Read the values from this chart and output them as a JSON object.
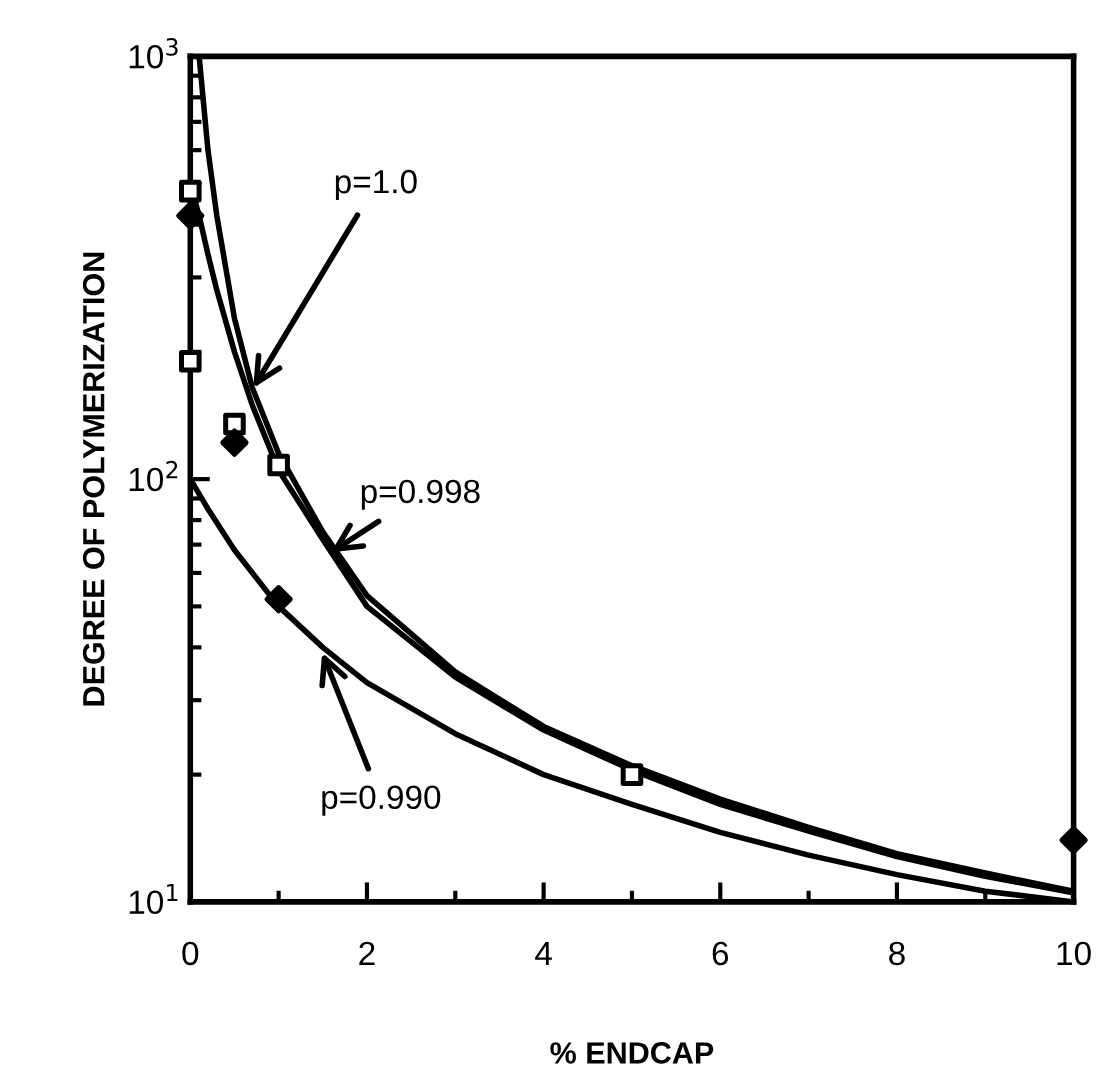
{
  "chart_data": {
    "type": "line",
    "xlabel": "% ENDCAP",
    "ylabel": "DEGREE OF POLYMERIZATION",
    "log": "y",
    "xlim": [
      0,
      10
    ],
    "ylim": [
      10,
      1000
    ],
    "xticks": [
      0,
      2,
      4,
      6,
      8,
      10
    ],
    "yticks": [
      {
        "value": 10,
        "label": "10$^{1}$"
      },
      {
        "value": 100,
        "label": "10$^{2}$"
      },
      {
        "value": 1000,
        "label": "10$^{3}$"
      }
    ],
    "grid": false,
    "legend": false,
    "line_style": "solid",
    "series": [
      {
        "type": "line",
        "color": "#000000",
        "marker": "none",
        "x": [
          0.1,
          0.2,
          0.3,
          0.5,
          0.7,
          1,
          1.5,
          2,
          3,
          4,
          5,
          6,
          7,
          8,
          9,
          10
        ],
        "values": [
          1000,
          600,
          420,
          240,
          165,
          115,
          75,
          53,
          35,
          26,
          21,
          17.5,
          15,
          13,
          11.7,
          10.6
        ]
      },
      {
        "type": "line",
        "color": "#000000",
        "marker": "none",
        "x": [
          0,
          0.1,
          0.2,
          0.3,
          0.5,
          0.7,
          1,
          1.5,
          2,
          3,
          4,
          5,
          6,
          7,
          8,
          9,
          10
        ],
        "values": [
          500,
          420,
          340,
          280,
          200,
          150,
          105,
          72,
          50,
          34,
          25.5,
          20.5,
          17,
          14.7,
          12.8,
          11.5,
          10.5
        ]
      },
      {
        "type": "line",
        "color": "#000000",
        "marker": "none",
        "x": [
          0,
          0.2,
          0.5,
          1,
          1.5,
          2,
          3,
          4,
          5,
          6,
          7,
          8,
          9,
          10
        ],
        "values": [
          100,
          85,
          68,
          50,
          40,
          33,
          25,
          20,
          17,
          14.6,
          12.9,
          11.6,
          10.6,
          10
        ]
      },
      {
        "type": "scatter",
        "color": "#000000",
        "marker": "square",
        "x": [
          0,
          0,
          0.5,
          1,
          5
        ],
        "values": [
          480,
          190,
          135,
          108,
          20
        ]
      },
      {
        "type": "scatter",
        "color": "#000000",
        "marker": "diamond",
        "x": [
          0,
          0.5,
          1,
          10
        ],
        "values": [
          420,
          122,
          52,
          14
        ]
      }
    ],
    "annotations": [
      {
        "text": "p=1.0",
        "x": 0.68,
        "y": 160
      },
      {
        "text": "p=0.998",
        "x": 1.54,
        "y": 66
      },
      {
        "text": "p=0.990",
        "x": 1.47,
        "y": 40
      }
    ]
  }
}
